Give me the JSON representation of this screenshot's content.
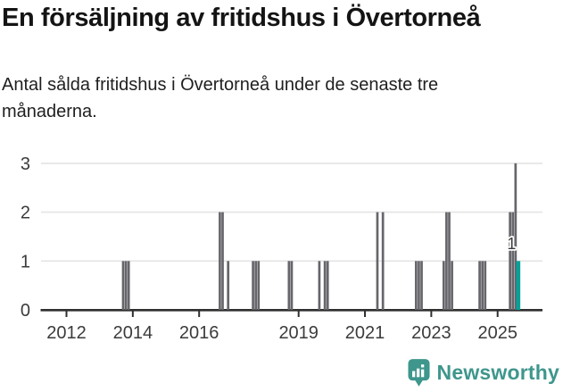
{
  "header": {
    "title": "En försäljning av fritidshus i Övertorneå",
    "subtitle_lines": [
      "Antal sålda fritidshus i Övertorneå under de senaste tre",
      "månaderna."
    ]
  },
  "chart_data": {
    "type": "bar",
    "title": "En försäljning av fritidshus i Övertorneå",
    "subtitle": "Antal sålda fritidshus i Övertorneå under de senaste tre månaderna.",
    "xlabel": "",
    "ylabel": "",
    "ylim": [
      0,
      3
    ],
    "y_ticks": [
      0,
      1,
      2,
      3
    ],
    "x_tick_labels": [
      "2012",
      "2014",
      "2016",
      "2019",
      "2021",
      "2023",
      "2025"
    ],
    "x_range_years": [
      2011.3,
      2026.3
    ],
    "grid": "horizontal",
    "legend": "none",
    "series": [
      {
        "name": "Antal sålda fritidshus per månad",
        "points": [
          {
            "month": "2013-09",
            "value": 1
          },
          {
            "month": "2013-10",
            "value": 1
          },
          {
            "month": "2013-11",
            "value": 1
          },
          {
            "month": "2016-08",
            "value": 2
          },
          {
            "month": "2016-09",
            "value": 2
          },
          {
            "month": "2016-11",
            "value": 1
          },
          {
            "month": "2017-08",
            "value": 1
          },
          {
            "month": "2017-09",
            "value": 1
          },
          {
            "month": "2017-10",
            "value": 1
          },
          {
            "month": "2018-09",
            "value": 1
          },
          {
            "month": "2018-10",
            "value": 1
          },
          {
            "month": "2019-08",
            "value": 1
          },
          {
            "month": "2019-10",
            "value": 1
          },
          {
            "month": "2019-11",
            "value": 1
          },
          {
            "month": "2021-05",
            "value": 2
          },
          {
            "month": "2021-07",
            "value": 2
          },
          {
            "month": "2022-07",
            "value": 1
          },
          {
            "month": "2022-08",
            "value": 1
          },
          {
            "month": "2022-09",
            "value": 1
          },
          {
            "month": "2023-05",
            "value": 1
          },
          {
            "month": "2023-06",
            "value": 2
          },
          {
            "month": "2023-07",
            "value": 2
          },
          {
            "month": "2023-08",
            "value": 1
          },
          {
            "month": "2024-06",
            "value": 1
          },
          {
            "month": "2024-07",
            "value": 1
          },
          {
            "month": "2024-08",
            "value": 1
          },
          {
            "month": "2025-05",
            "value": 2
          },
          {
            "month": "2025-06",
            "value": 2
          },
          {
            "month": "2025-07",
            "value": 3
          }
        ]
      }
    ],
    "highlight_point": {
      "month": "2025-08",
      "value": 1,
      "data_label": "1"
    }
  },
  "branding": {
    "logo_text": "Newsworthy"
  },
  "colors": {
    "background": "#ffffff",
    "title": "#141414",
    "subtitle": "#1f1f1f",
    "bar": "#66666b",
    "highlight": "#00a39b",
    "grid": "#e4e4e4",
    "axis": "#2f2f2f",
    "tick_label": "#3b3b3b",
    "annotation": "#3a3a3a",
    "annotation_halo": "#ffffff",
    "brand": "#3e968c"
  }
}
